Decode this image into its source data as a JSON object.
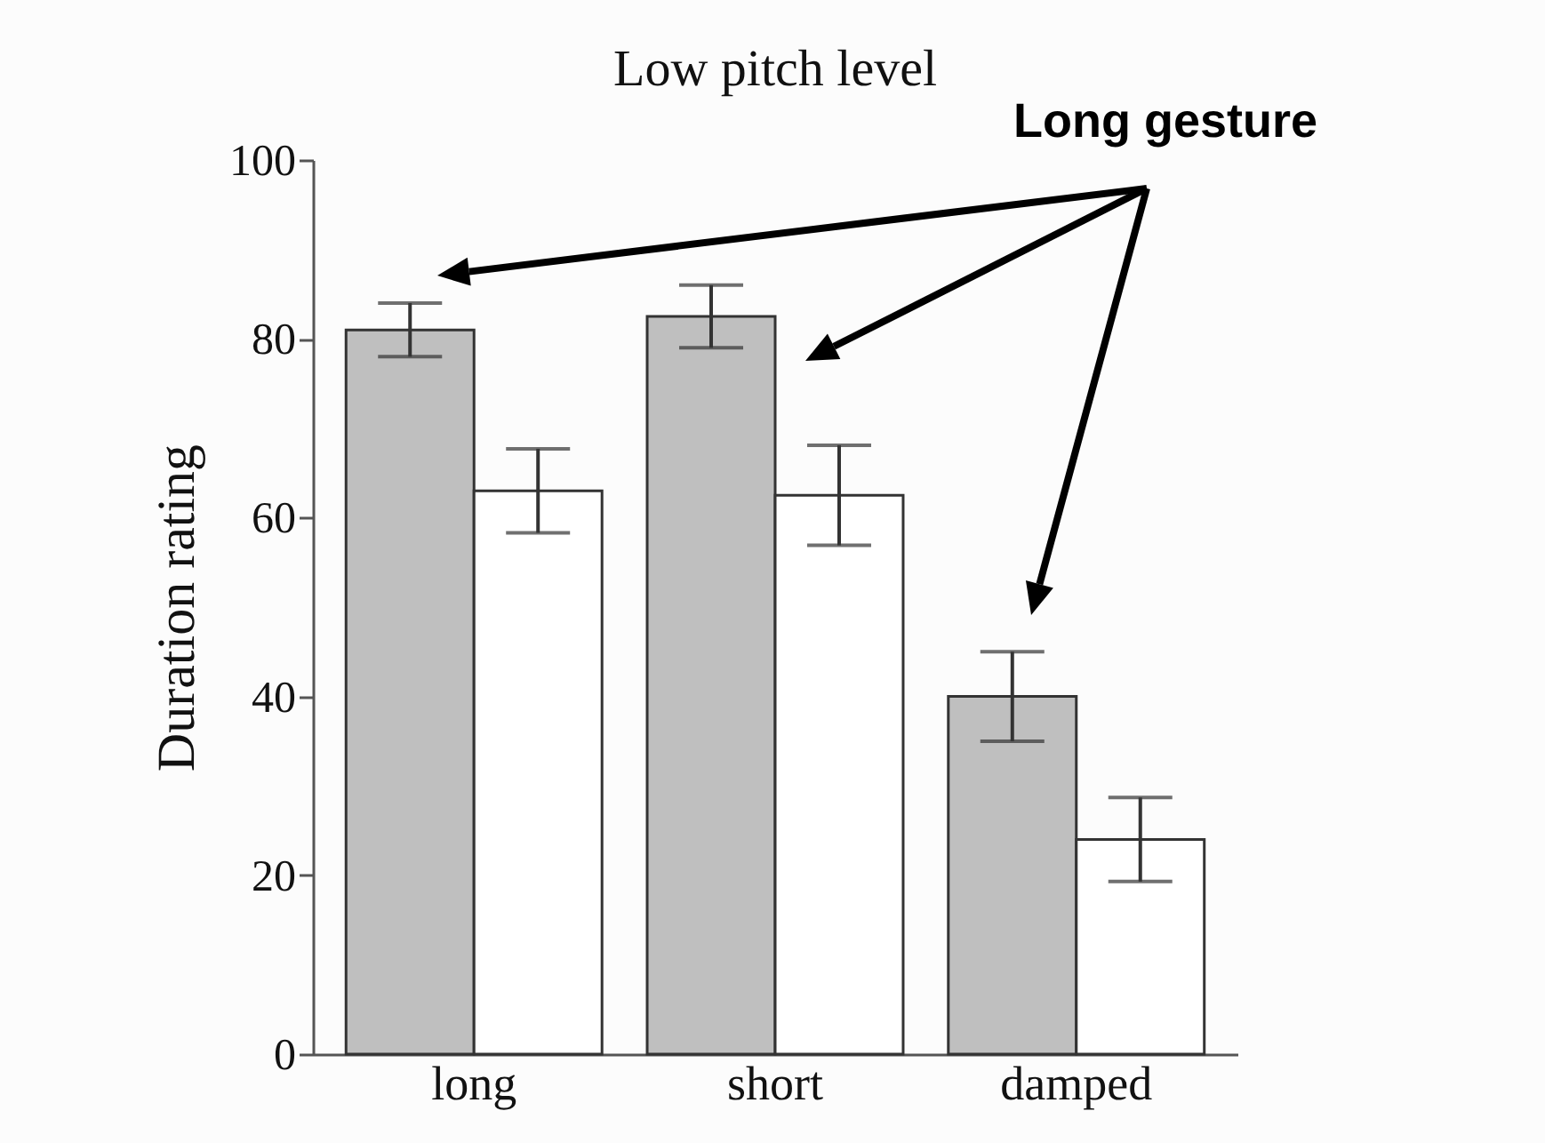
{
  "chart_data": {
    "type": "bar",
    "title": "Low pitch level",
    "ylabel": "Duration rating",
    "categories": [
      "long",
      "short",
      "damped"
    ],
    "series": [
      {
        "color": "#bfbfbf",
        "values": [
          81,
          82.5,
          40
        ],
        "errors": [
          3,
          3.5,
          5
        ]
      },
      {
        "color": "#ffffff",
        "values": [
          63,
          62.5,
          24
        ],
        "errors": [
          4.7,
          5.6,
          4.7
        ]
      }
    ],
    "ylim": [
      0,
      100
    ],
    "yticks": [
      0,
      20,
      40,
      60,
      80,
      100
    ],
    "grid": false,
    "legend": false,
    "annotations": [
      "Long gesture"
    ]
  }
}
